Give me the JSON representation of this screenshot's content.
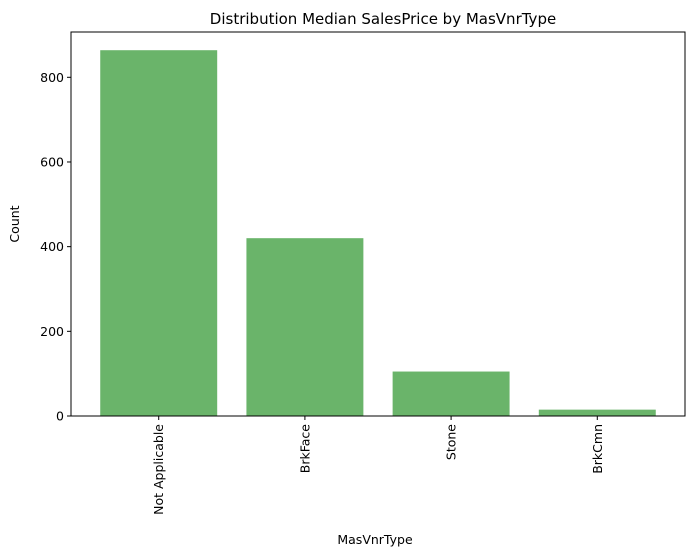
{
  "chart_data": {
    "type": "bar",
    "title": "Distribution Median SalesPrice by MasVnrType",
    "xlabel": "MasVnrType",
    "ylabel": "Count",
    "categories": [
      "Not Applicable",
      "BrkFace",
      "Stone",
      "BrkCmn"
    ],
    "values": [
      864,
      420,
      105,
      15
    ],
    "ylim": [
      0,
      907
    ],
    "yticks": [
      0,
      200,
      400,
      600,
      800
    ],
    "bar_color": "#6ab46a",
    "grid": false,
    "legend": "none"
  }
}
